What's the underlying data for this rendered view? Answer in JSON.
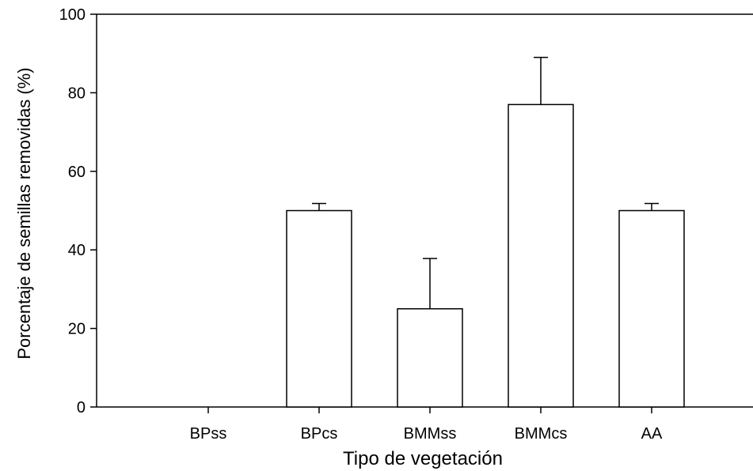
{
  "chart_data": {
    "type": "bar",
    "title": "",
    "xlabel": "Tipo de vegetación",
    "ylabel": "Porcentaje de semillas removidas (%)",
    "categories": [
      "BPss",
      "BPcs",
      "BMMss",
      "BMMcs",
      "AA"
    ],
    "values": [
      0,
      50,
      25,
      77,
      50
    ],
    "error_bars_upper": [
      0,
      1.8,
      12.8,
      12,
      1.8
    ],
    "ylim": [
      0,
      100
    ],
    "yticks": [
      "0",
      "20",
      "40",
      "60",
      "80",
      "100"
    ],
    "grid": false,
    "bar_fill": "#ffffff",
    "bar_stroke": "#000000"
  }
}
